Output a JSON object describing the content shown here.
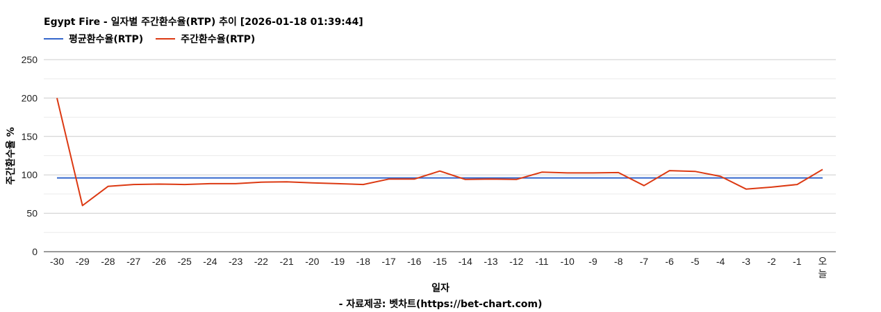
{
  "title": "Egypt Fire - 일자별 주간환수율(RTP) 추이 [2026-01-18 01:39:44]",
  "source": "- 자료제공: 벳차트(https://bet-chart.com)",
  "chart_data": {
    "type": "line",
    "title": "Egypt Fire - 일자별 주간환수율(RTP) 추이 [2026-01-18 01:39:44]",
    "xlabel": "일자",
    "ylabel": "주간환수율 %",
    "ylim": [
      0,
      250
    ],
    "yticks": [
      0,
      50,
      100,
      150,
      200,
      250
    ],
    "grid": true,
    "legend_position": "top-left",
    "categories": [
      "-30",
      "-29",
      "-28",
      "-27",
      "-26",
      "-25",
      "-24",
      "-23",
      "-22",
      "-21",
      "-20",
      "-19",
      "-18",
      "-17",
      "-16",
      "-15",
      "-14",
      "-13",
      "-12",
      "-11",
      "-10",
      "-9",
      "-8",
      "-7",
      "-6",
      "-5",
      "-4",
      "-3",
      "-2",
      "-1",
      "오늘"
    ],
    "series": [
      {
        "name": "평균환수율(RTP)",
        "color": "#3366cc",
        "values": [
          96,
          96,
          96,
          96,
          96,
          96,
          96,
          96,
          96,
          96,
          96,
          96,
          96,
          96,
          96,
          96,
          96,
          96,
          96,
          96,
          96,
          96,
          96,
          96,
          96,
          96,
          96,
          96,
          96,
          96,
          96
        ]
      },
      {
        "name": "주간환수율(RTP)",
        "color": "#dc3912",
        "values": [
          200,
          60,
          85,
          87.5,
          88,
          87.5,
          88.5,
          88.5,
          90.5,
          91,
          89.5,
          88.5,
          87.5,
          94.5,
          94.5,
          105,
          94,
          94.5,
          94,
          103.5,
          102.5,
          102.5,
          103,
          86,
          105.5,
          104.5,
          98,
          81.5,
          84,
          87.5,
          107
        ]
      }
    ]
  }
}
